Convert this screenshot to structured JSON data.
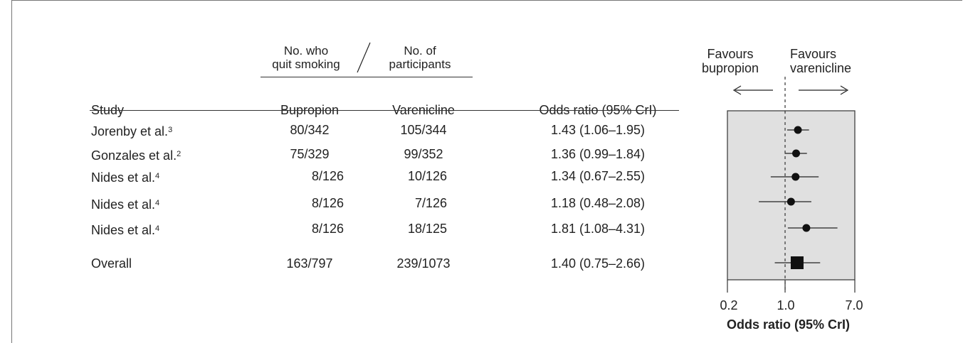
{
  "table": {
    "group_header": {
      "numerator": [
        "No. who",
        "quit smoking"
      ],
      "denominator": [
        "No. of",
        "participants"
      ]
    },
    "columns": {
      "study": "Study",
      "bupropion": "Bupropion",
      "varenicline": "Varenicline",
      "odds_ratio": "Odds ratio (95% CrI)"
    },
    "rows": [
      {
        "study": "Jorenby et al.",
        "ref": "3",
        "bupropion": "80/342",
        "varenicline": "105/344",
        "or_text": "1.43 (1.06–1.95)"
      },
      {
        "study": "Gonzales et al.",
        "ref": "2",
        "bupropion": "75/329",
        "varenicline": "99/352",
        "or_text": "1.36 (0.99–1.84)"
      },
      {
        "study": "Nides et al.",
        "ref": "4",
        "bupropion": "8/126",
        "varenicline": "10/126",
        "or_text": "1.34 (0.67–2.55)"
      },
      {
        "study": "Nides et al.",
        "ref": "4",
        "bupropion": "8/126",
        "varenicline": "7/126",
        "or_text": "1.18 (0.48–2.08)"
      },
      {
        "study": "Nides et al.",
        "ref": "4",
        "bupropion": "8/126",
        "varenicline": "18/125",
        "or_text": "1.81 (1.08–4.31)"
      }
    ],
    "overall": {
      "study": "Overall",
      "bupropion": "163/797",
      "varenicline": "239/1073",
      "or_text": "1.40 (0.75–2.66)"
    }
  },
  "chart_data": {
    "type": "forest",
    "xscale": "log",
    "xlim": [
      0.2,
      7.0
    ],
    "reference_line": 1.0,
    "xticks": [
      "0.2",
      "1.0",
      "7.0"
    ],
    "xlabel": "Odds ratio (95% CrI)",
    "favours_left": [
      "Favours",
      "bupropion"
    ],
    "favours_right": [
      "Favours",
      "varenicline"
    ],
    "background": "#e0e0e0",
    "studies": [
      {
        "or": 1.43,
        "lo": 1.06,
        "hi": 1.95
      },
      {
        "or": 1.36,
        "lo": 0.99,
        "hi": 1.84
      },
      {
        "or": 1.34,
        "lo": 0.67,
        "hi": 2.55
      },
      {
        "or": 1.18,
        "lo": 0.48,
        "hi": 2.08
      },
      {
        "or": 1.81,
        "lo": 1.08,
        "hi": 4.31
      }
    ],
    "overall": {
      "or": 1.4,
      "lo": 0.75,
      "hi": 2.66
    }
  }
}
